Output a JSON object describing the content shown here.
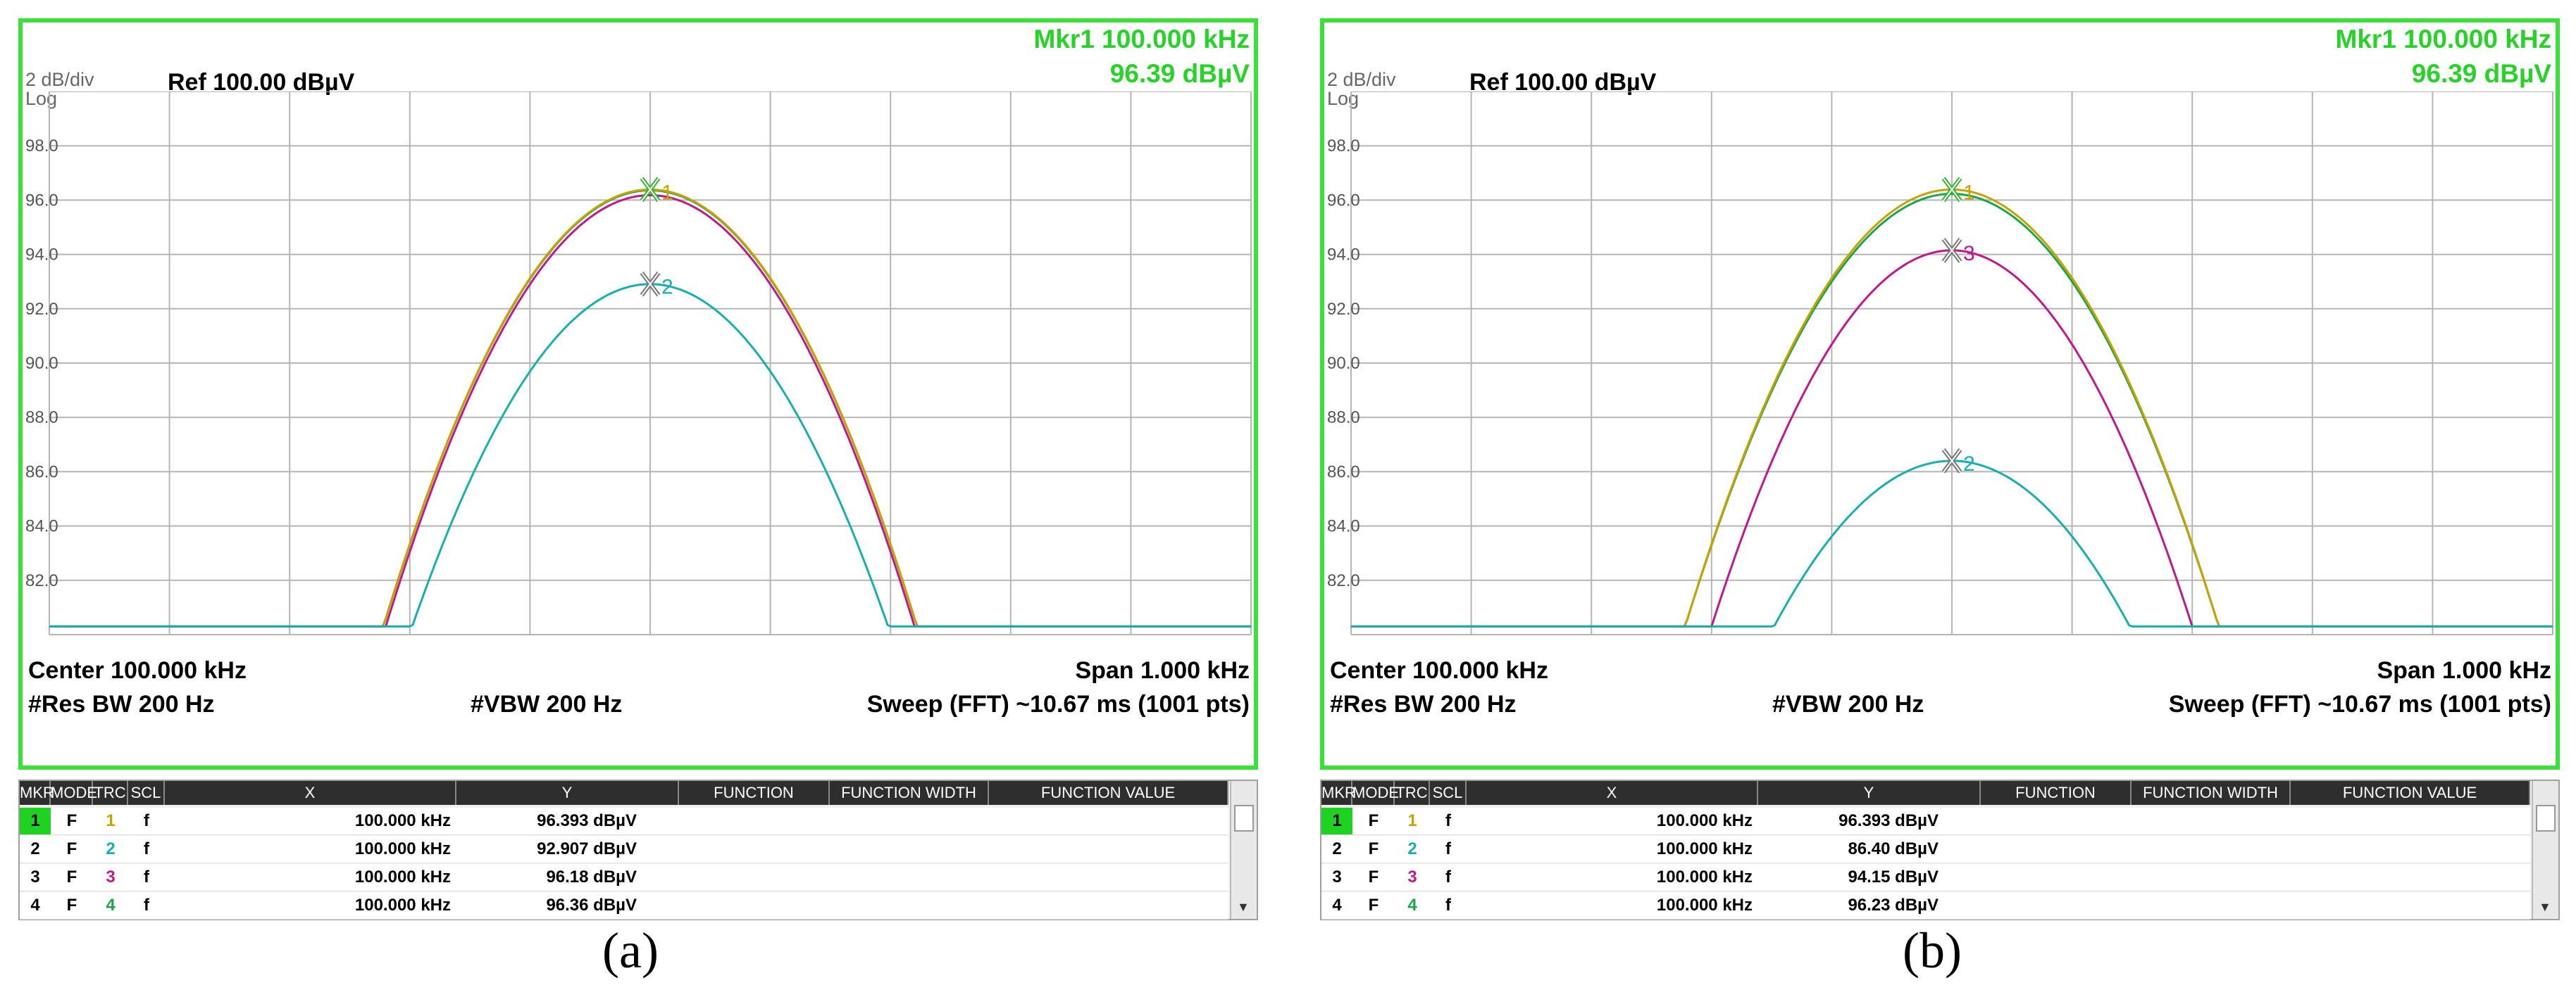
{
  "colors": {
    "frame": "#3be03b",
    "marker_text": "#27d327",
    "trace1": "#c8a200",
    "trace2": "#17b0b0",
    "trace3": "#c2188e",
    "trace4": "#18a84a"
  },
  "table_headers": [
    "MKR",
    "MODE",
    "TRC",
    "SCL",
    "X",
    "Y",
    "FUNCTION",
    "FUNCTION WIDTH",
    "FUNCTION VALUE"
  ],
  "panels": [
    {
      "caption": "(a)",
      "mkr_line1": "Mkr1 100.000 kHz",
      "mkr_line2": "96.39 dBµV",
      "scale_top": "2 dB/div",
      "scale_bottom": "Log",
      "ref": "Ref 100.00 dBµV",
      "y_ticks": [
        "98.0",
        "96.0",
        "94.0",
        "92.0",
        "90.0",
        "88.0",
        "86.0",
        "84.0",
        "82.0"
      ],
      "center": "Center 100.000 kHz",
      "span": "Span 1.000 kHz",
      "res_bw": "#Res BW 200 Hz",
      "vbw": "#VBW 200 Hz",
      "sweep": "Sweep (FFT)  ~10.67 ms (1001 pts)",
      "rows": [
        {
          "mkr": "1",
          "mode": "F",
          "trc": "1",
          "scl": "f",
          "x": "100.000 kHz",
          "y": "96.393 dBµV"
        },
        {
          "mkr": "2",
          "mode": "F",
          "trc": "2",
          "scl": "f",
          "x": "100.000 kHz",
          "y": "92.907 dBµV"
        },
        {
          "mkr": "3",
          "mode": "F",
          "trc": "3",
          "scl": "f",
          "x": "100.000 kHz",
          "y": "96.18 dBµV"
        },
        {
          "mkr": "4",
          "mode": "F",
          "trc": "4",
          "scl": "f",
          "x": "100.000 kHz",
          "y": "96.36 dBµV"
        }
      ],
      "marker_labels": [
        {
          "label": "1",
          "trace": 1,
          "peak": 96.39
        },
        {
          "label": "2",
          "trace": 2,
          "peak": 92.91
        }
      ],
      "traces": [
        {
          "trace": 4,
          "peak": 96.36,
          "half_width_khz": 0.222
        },
        {
          "trace": 1,
          "peak": 96.39,
          "half_width_khz": 0.222
        },
        {
          "trace": 3,
          "peak": 96.18,
          "half_width_khz": 0.22
        },
        {
          "trace": 2,
          "peak": 92.907,
          "half_width_khz": 0.198
        }
      ]
    },
    {
      "caption": "(b)",
      "mkr_line1": "Mkr1 100.000 kHz",
      "mkr_line2": "96.39 dBµV",
      "scale_top": "2 dB/div",
      "scale_bottom": "Log",
      "ref": "Ref 100.00 dBµV",
      "y_ticks": [
        "98.0",
        "96.0",
        "94.0",
        "92.0",
        "90.0",
        "88.0",
        "86.0",
        "84.0",
        "82.0"
      ],
      "center": "Center 100.000 kHz",
      "span": "Span 1.000 kHz",
      "res_bw": "#Res BW 200 Hz",
      "vbw": "#VBW 200 Hz",
      "sweep": "Sweep (FFT)  ~10.67 ms (1001 pts)",
      "rows": [
        {
          "mkr": "1",
          "mode": "F",
          "trc": "1",
          "scl": "f",
          "x": "100.000 kHz",
          "y": "96.393 dBµV"
        },
        {
          "mkr": "2",
          "mode": "F",
          "trc": "2",
          "scl": "f",
          "x": "100.000 kHz",
          "y": "86.40 dBµV"
        },
        {
          "mkr": "3",
          "mode": "F",
          "trc": "3",
          "scl": "f",
          "x": "100.000 kHz",
          "y": "94.15 dBµV"
        },
        {
          "mkr": "4",
          "mode": "F",
          "trc": "4",
          "scl": "f",
          "x": "100.000 kHz",
          "y": "96.23 dBµV"
        }
      ],
      "marker_labels": [
        {
          "label": "1",
          "trace": 1,
          "peak": 96.39
        },
        {
          "label": "3",
          "trace": 3,
          "peak": 94.15
        },
        {
          "label": "2",
          "trace": 2,
          "peak": 86.4
        }
      ],
      "traces": [
        {
          "trace": 4,
          "peak": 96.23,
          "half_width_khz": 0.222
        },
        {
          "trace": 1,
          "peak": 96.39,
          "half_width_khz": 0.222
        },
        {
          "trace": 3,
          "peak": 94.15,
          "half_width_khz": 0.2
        },
        {
          "trace": 2,
          "peak": 86.4,
          "half_width_khz": 0.148
        }
      ]
    }
  ]
}
